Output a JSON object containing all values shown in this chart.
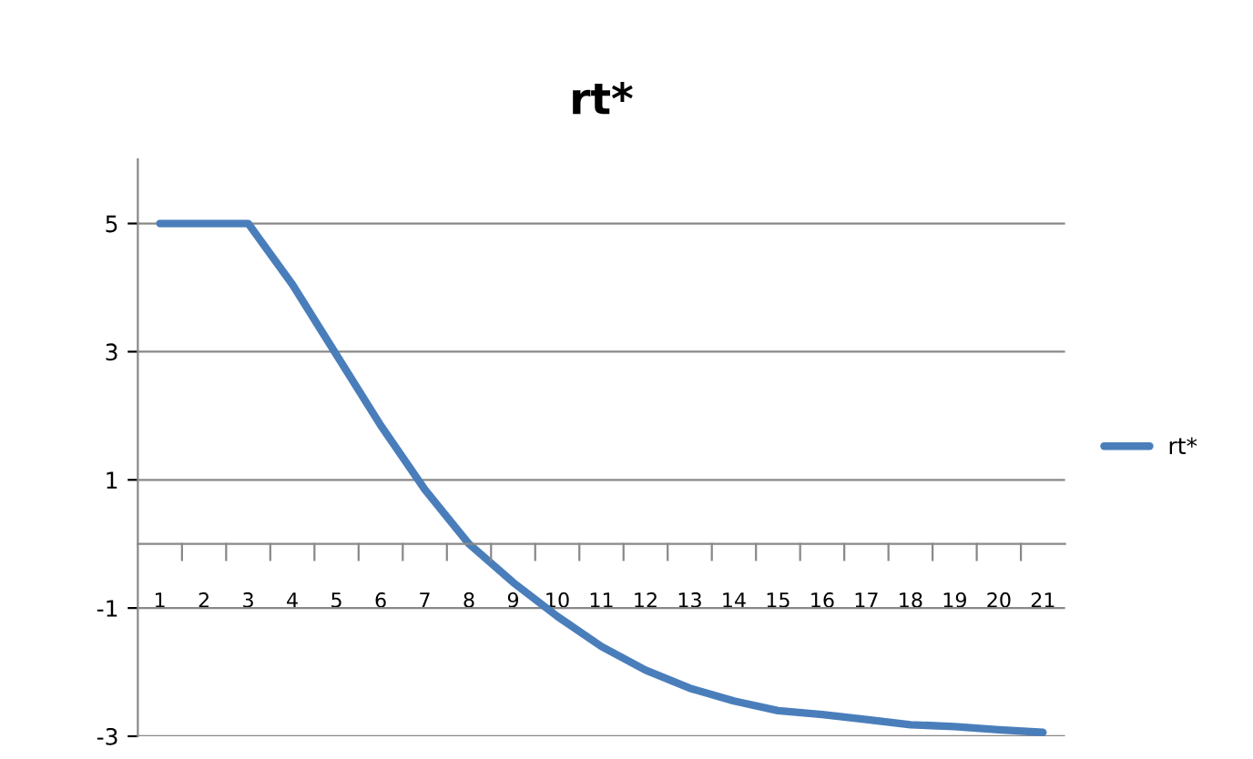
{
  "chart_data": {
    "type": "line",
    "title": "rt*",
    "categories": [
      "1",
      "2",
      "3",
      "4",
      "5",
      "6",
      "7",
      "8",
      "9",
      "10",
      "11",
      "12",
      "13",
      "14",
      "15",
      "16",
      "17",
      "18",
      "19",
      "20",
      "21"
    ],
    "series": [
      {
        "name": "rt*",
        "color": "#4a7ebb",
        "values": [
          5,
          5,
          5,
          4.05,
          2.95,
          1.85,
          0.85,
          0,
          -0.6,
          -1.13,
          -1.6,
          -1.97,
          -2.25,
          -2.45,
          -2.6,
          -2.66,
          -2.74,
          -2.82,
          -2.85,
          -2.9,
          -2.94
        ]
      }
    ],
    "ylim": [
      -3,
      6
    ],
    "yticks": [
      -3,
      -1,
      1,
      3,
      5
    ],
    "grid": "y",
    "legend": "right",
    "marker": "none",
    "line_style": "solid"
  }
}
